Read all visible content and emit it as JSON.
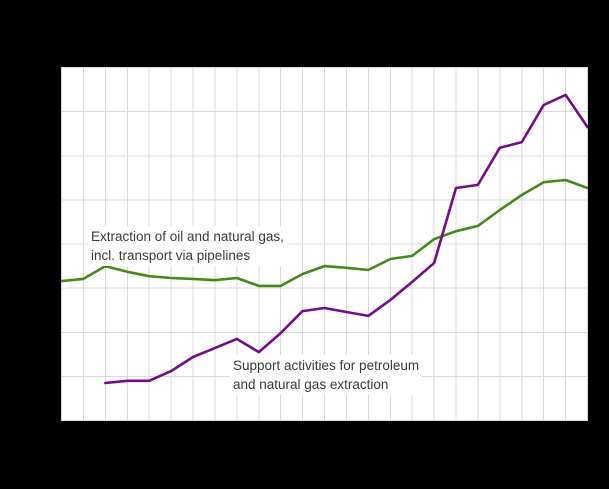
{
  "window": {
    "background_color": "#000000",
    "plot_background_color": "#ffffff",
    "grid_color": "#d9d9d9",
    "text_color": "#3a3a3a"
  },
  "annotations": {
    "extraction_line1": "Extraction of oil and natural gas,",
    "extraction_line2": "incl. transport via pipelines",
    "support_line1": "Support activities for petroleum",
    "support_line2": "and natural gas extraction"
  },
  "chart_data": {
    "type": "line",
    "title": "",
    "xlabel": "",
    "ylabel": "",
    "axis_tick_labels_visible": false,
    "legend": "none (series labeled by in-plot annotations)",
    "grid": "on",
    "x_columns": 25,
    "x": [
      0,
      1,
      2,
      3,
      4,
      5,
      6,
      7,
      8,
      9,
      10,
      11,
      12,
      13,
      14,
      15,
      16,
      17,
      18,
      19,
      20,
      21,
      22,
      23,
      24
    ],
    "ylim": [
      0,
      8
    ],
    "y_unit": "gridline units (no numeric labels visible)",
    "series": [
      {
        "name": "Extraction of oil and natural gas, incl. transport via pipelines",
        "color": "#45891a",
        "start_index": 0,
        "values": [
          3.16,
          3.21,
          3.5,
          3.37,
          3.27,
          3.23,
          3.21,
          3.18,
          3.23,
          3.05,
          3.05,
          3.32,
          3.5,
          3.46,
          3.41,
          3.66,
          3.73,
          4.11,
          4.29,
          4.41,
          4.77,
          5.11,
          5.4,
          5.45,
          5.27
        ]
      },
      {
        "name": "Support activities for petroleum and natural gas extraction",
        "color": "#750c87",
        "start_index": 2,
        "values": [
          0.85,
          0.9,
          0.9,
          1.12,
          1.44,
          1.64,
          1.85,
          1.55,
          1.98,
          2.48,
          2.55,
          2.46,
          2.37,
          2.73,
          3.14,
          3.57,
          5.27,
          5.34,
          6.18,
          6.31,
          7.15,
          7.38,
          6.65
        ]
      }
    ]
  }
}
